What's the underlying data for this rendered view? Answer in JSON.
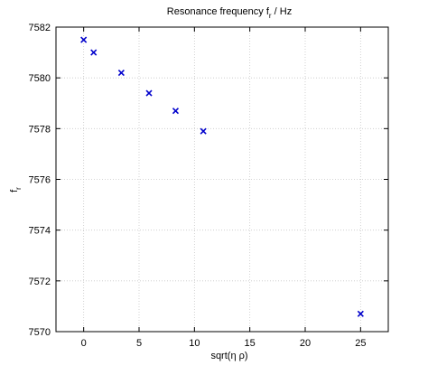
{
  "chart_data": {
    "type": "scatter",
    "title": "Resonance frequency f",
    "title_subscript": "r",
    "title_suffix": " / Hz",
    "xlabel": "sqrt(η ρ)",
    "ylabel": "f",
    "ylabel_subscript": "r",
    "xlim": [
      -2.5,
      27.5
    ],
    "ylim": [
      7570,
      7582
    ],
    "x_ticks": [
      0,
      5,
      10,
      15,
      20,
      25
    ],
    "y_ticks": [
      7570,
      7572,
      7574,
      7576,
      7578,
      7580,
      7582
    ],
    "grid": true,
    "marker": "x",
    "marker_color": "#0000cc",
    "points": [
      {
        "x": 0.0,
        "y": 7581.5
      },
      {
        "x": 0.9,
        "y": 7581.0
      },
      {
        "x": 3.4,
        "y": 7580.2
      },
      {
        "x": 5.9,
        "y": 7579.4
      },
      {
        "x": 8.3,
        "y": 7578.7
      },
      {
        "x": 10.8,
        "y": 7577.9
      },
      {
        "x": 25.0,
        "y": 7570.7
      }
    ]
  }
}
